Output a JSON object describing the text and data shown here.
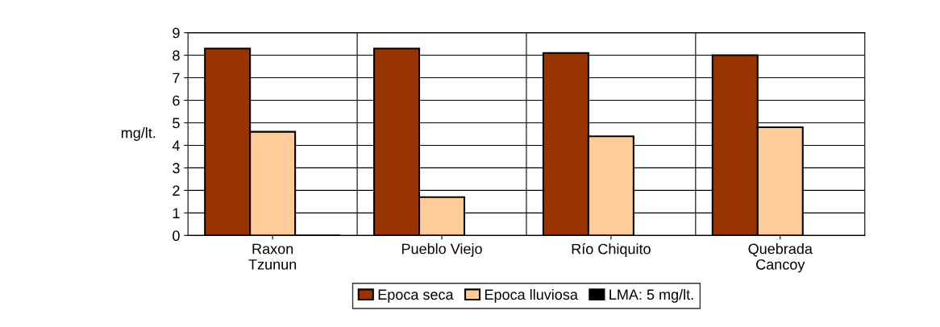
{
  "chart_data": {
    "type": "bar",
    "ylabel": "mg/lt.",
    "categories": [
      "Raxon\nTzunun",
      "Pueblo Viejo",
      "Río Chiquito",
      "Quebrada\nCancoy"
    ],
    "series": [
      {
        "name": "Epoca seca",
        "color": "#993300",
        "values": [
          8.3,
          8.3,
          8.1,
          8.0
        ]
      },
      {
        "name": "Epoca lluviosa",
        "color": "#ffcc99",
        "values": [
          4.6,
          1.7,
          4.4,
          4.8
        ]
      },
      {
        "name": "LMA: 5 mg/lt.",
        "color": "#000000",
        "values": [
          0,
          null,
          null,
          null
        ]
      }
    ],
    "ylim": [
      0,
      9
    ],
    "yticks": [
      0,
      1,
      2,
      3,
      4,
      5,
      6,
      7,
      8,
      9
    ],
    "grid": "y",
    "legend": "bottom"
  }
}
